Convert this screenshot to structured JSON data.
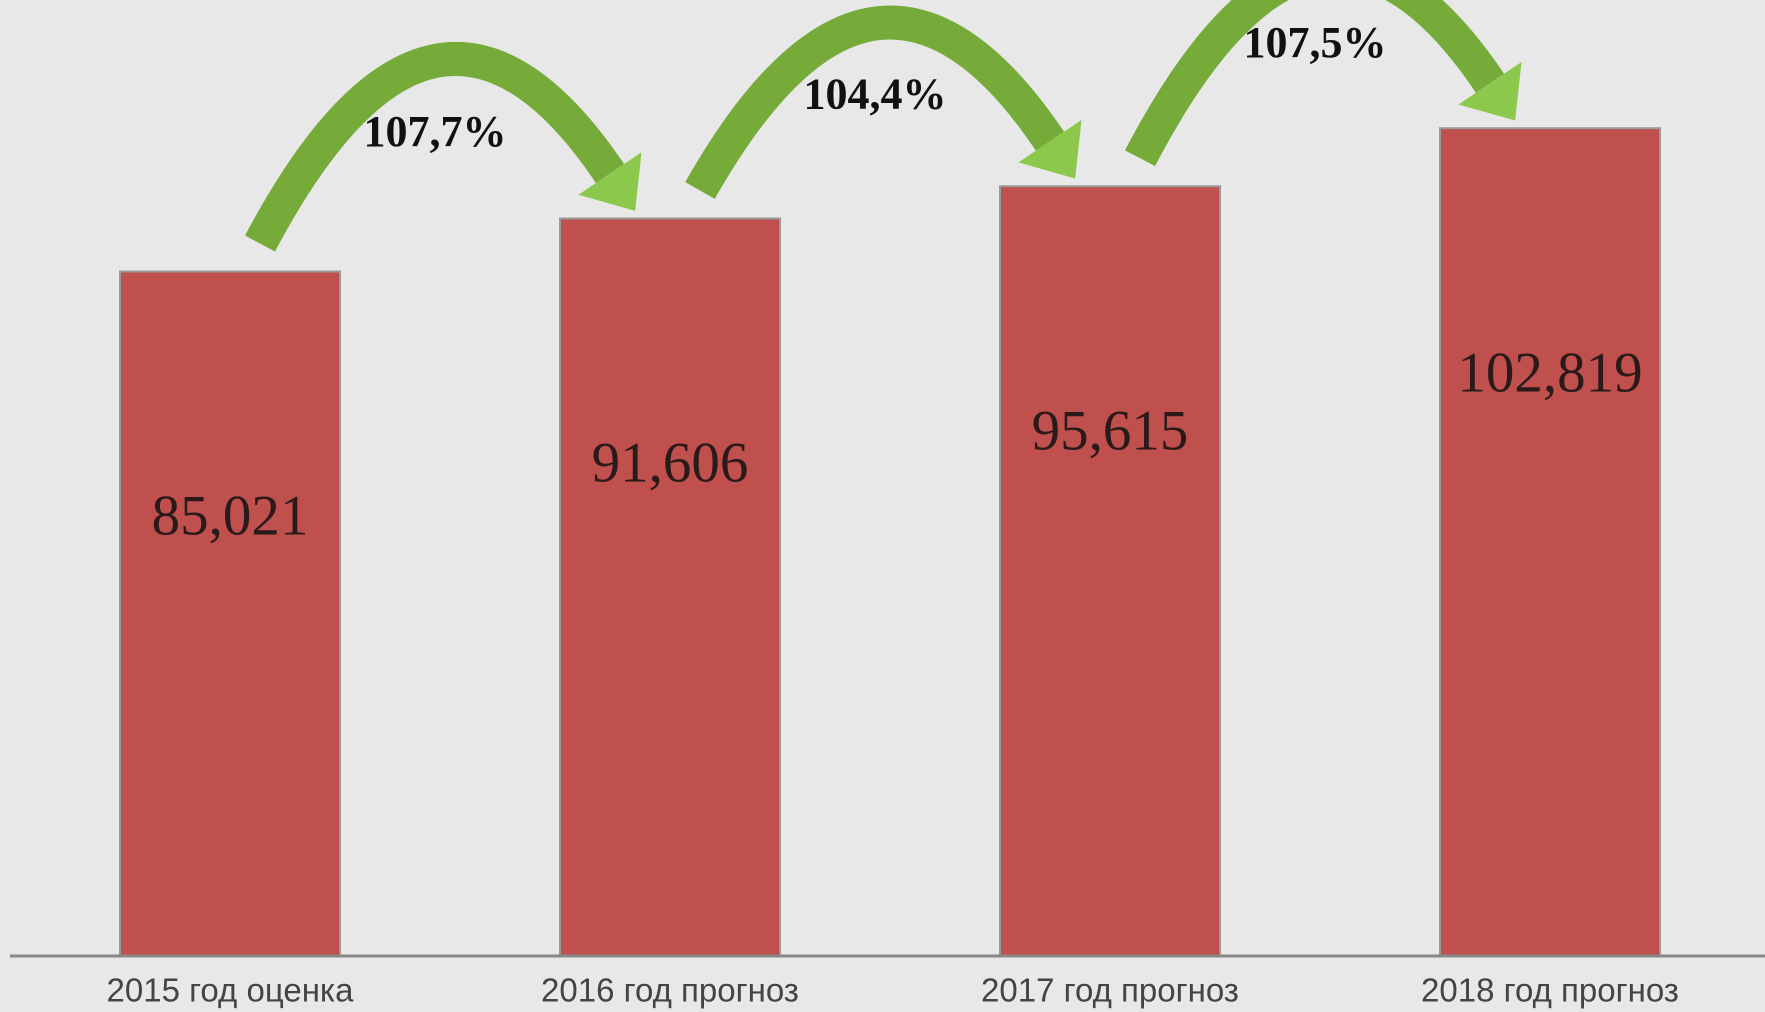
{
  "chart_data": {
    "type": "bar",
    "categories": [
      "2015 год оценка",
      "2016 год прогноз",
      "2017 год прогноз",
      "2018 год прогноз"
    ],
    "values": [
      85.021,
      91.606,
      95.615,
      102.819
    ],
    "value_labels": [
      "85,021",
      "91,606",
      "95,615",
      "102,819"
    ],
    "color": "#c0504d",
    "annotations": [
      "107,7%",
      "104,4%",
      "107,5%"
    ],
    "ylim": [
      0,
      118
    ]
  }
}
